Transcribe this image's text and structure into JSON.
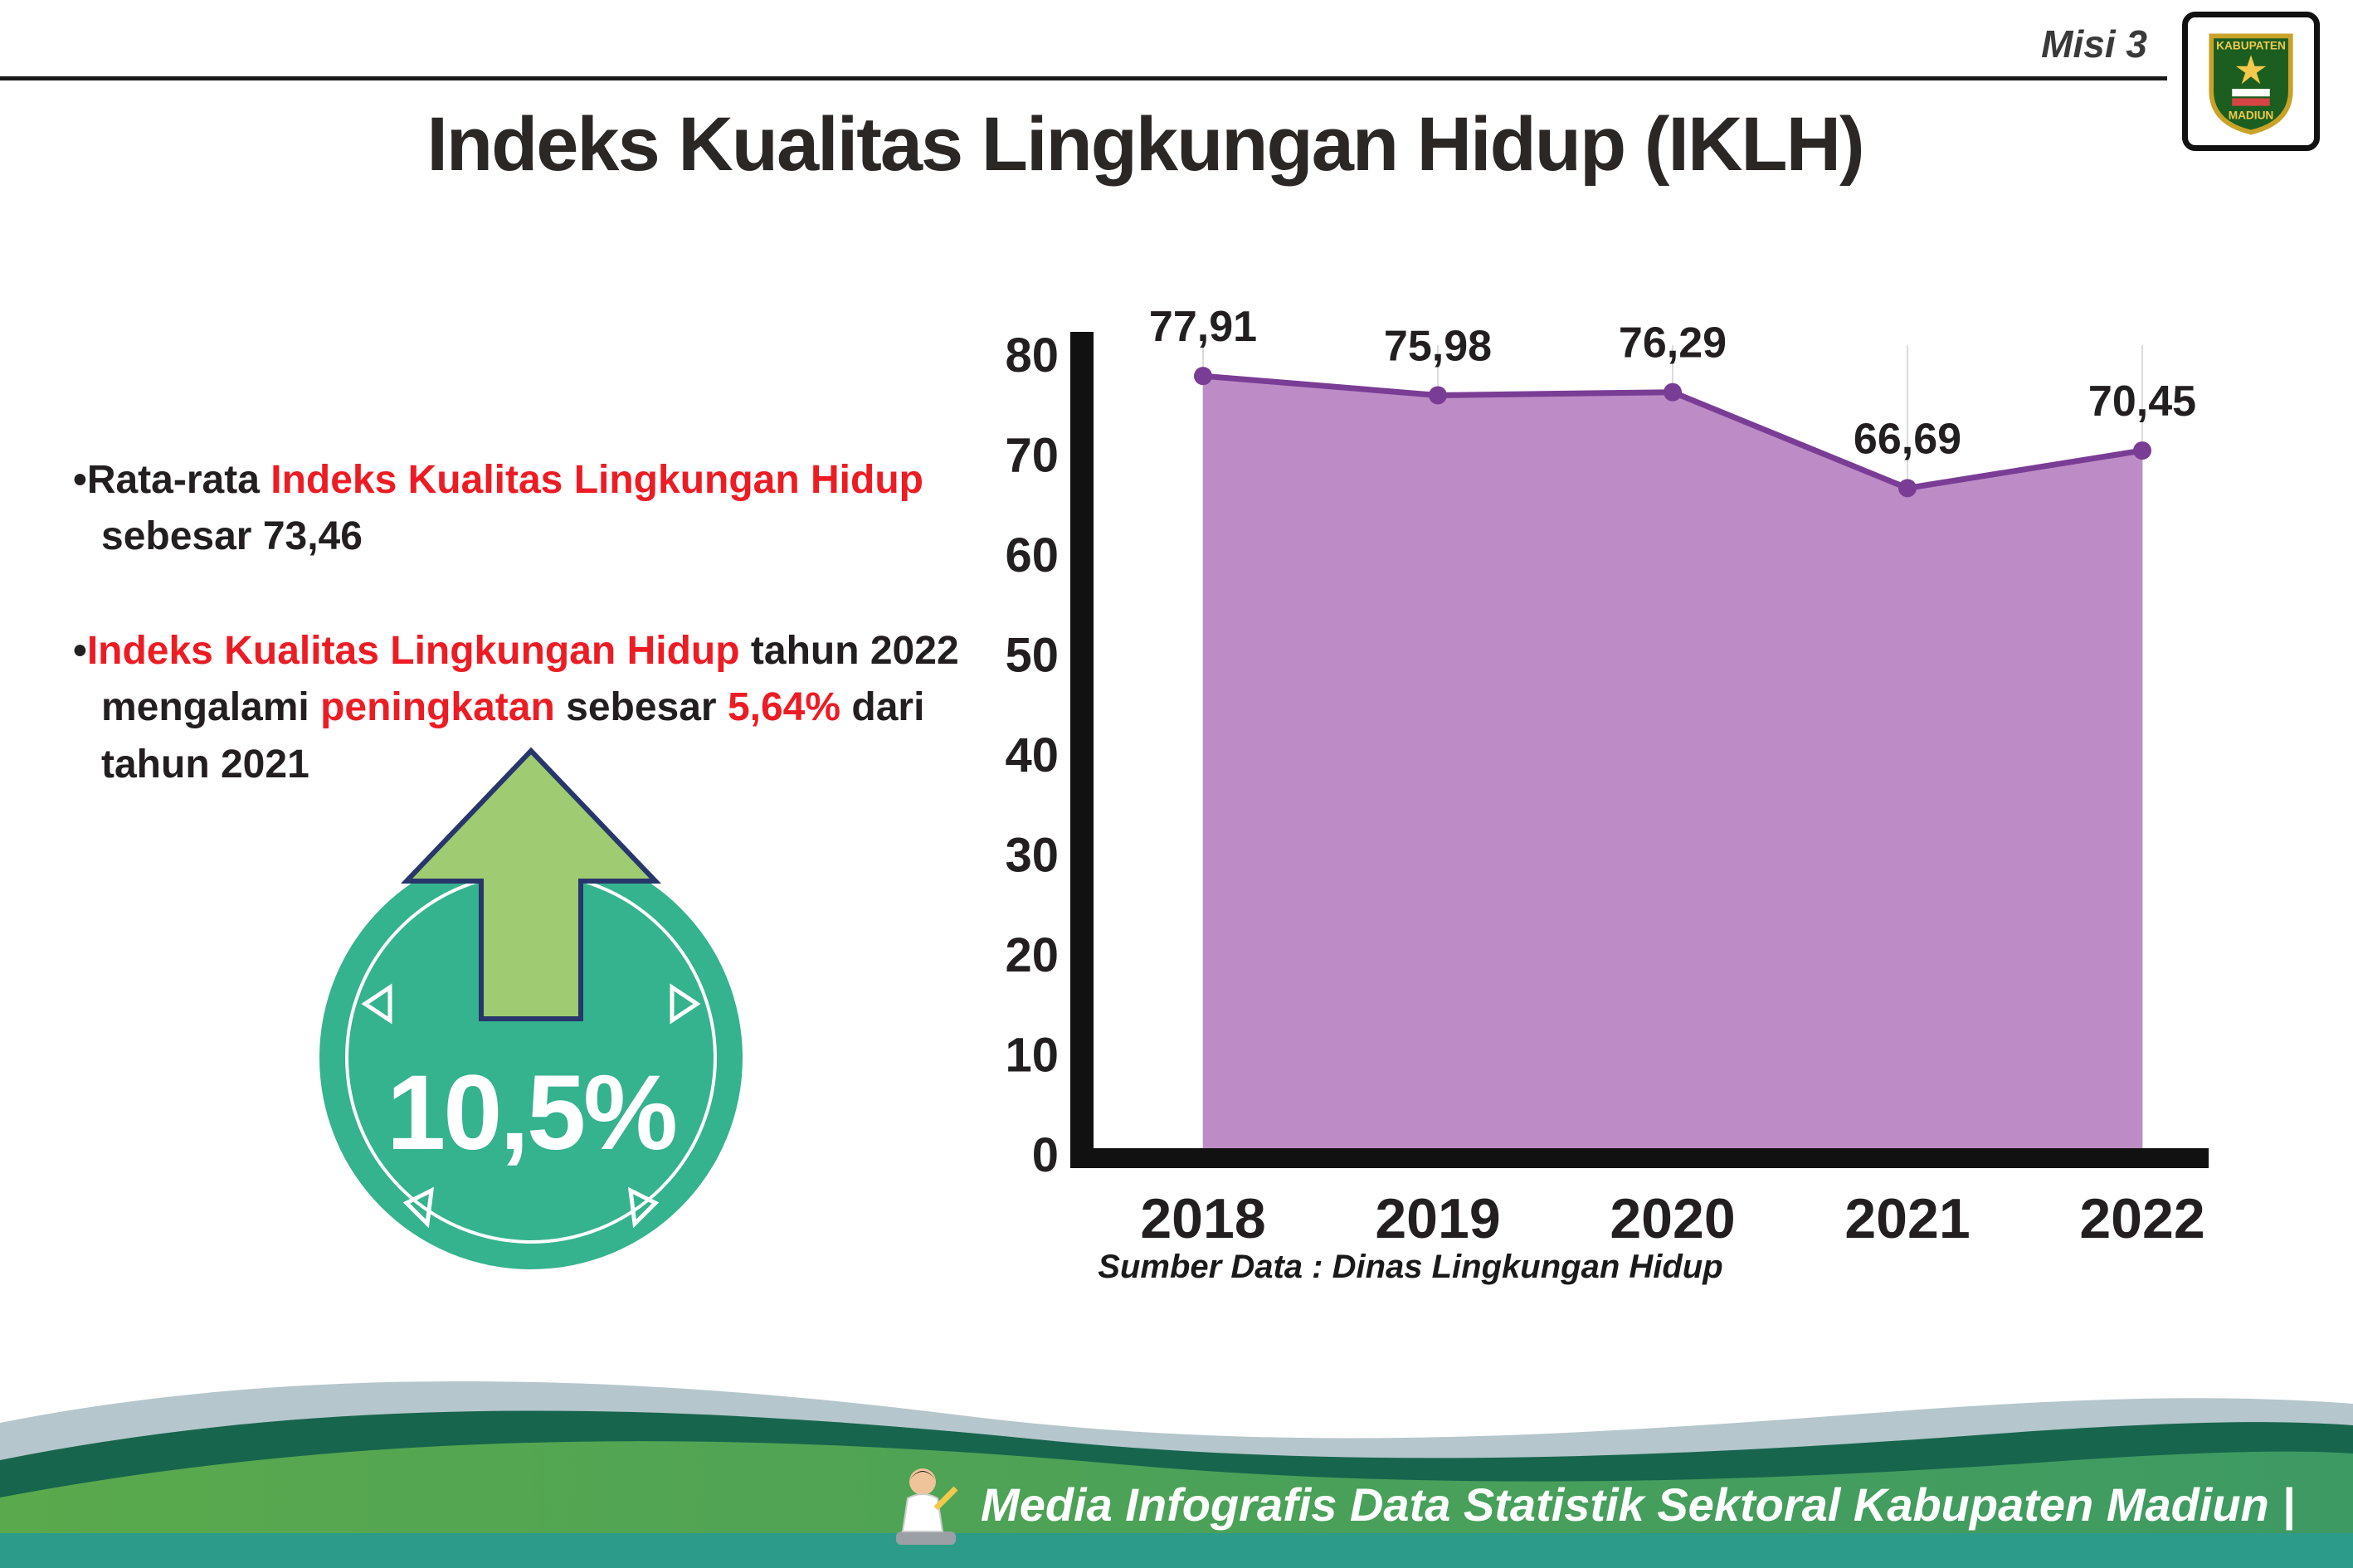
{
  "page": {
    "misi_label": "Misi 3",
    "title": "Indeks Kualitas Lingkungan Hidup (IKLH)",
    "source": "Sumber Data : Dinas Lingkungan Hidup",
    "footer_text": "Media Infografis Data Statistik Sektoral Kabupaten Madiun |"
  },
  "logo": {
    "top_text": "KABUPATEN",
    "bottom_text": "MADIUN"
  },
  "bullets": [
    {
      "marker": "•",
      "segments": [
        {
          "text": "Rata-rata ",
          "color": "dark"
        },
        {
          "text": "Indeks Kualitas Lingkungan Hidup",
          "color": "red"
        },
        {
          "text": " sebesar 73,46",
          "color": "dark"
        }
      ]
    },
    {
      "marker": "•",
      "segments": [
        {
          "text": "Indeks Kualitas Lingkungan Hidup",
          "color": "red"
        },
        {
          "text": " tahun 2022 mengalami ",
          "color": "dark"
        },
        {
          "text": "peningkatan",
          "color": "red"
        },
        {
          "text": " sebesar ",
          "color": "dark"
        },
        {
          "text": "5,64%",
          "color": "red"
        },
        {
          "text": " dari tahun 2021",
          "color": "dark"
        }
      ]
    }
  ],
  "badge": {
    "value": "10,5%"
  },
  "chart_data": {
    "type": "area",
    "categories": [
      "2018",
      "2019",
      "2020",
      "2021",
      "2022"
    ],
    "values": [
      77.91,
      75.98,
      76.29,
      66.69,
      70.45
    ],
    "labels": [
      "77,91",
      "75,98",
      "76,29",
      "66,69",
      "70,45"
    ],
    "title": "",
    "xlabel": "",
    "ylabel": "",
    "ylim": [
      0,
      80
    ],
    "ytick_interval": 10,
    "yticks": [
      0,
      10,
      20,
      30,
      40,
      50,
      60,
      70,
      80
    ],
    "grid": "vertical",
    "legend": "none",
    "fill_color": "#bd8cc6",
    "line_color": "#7a3d95"
  },
  "colors": {
    "accent_red": "#ed1c24",
    "text_dark": "#231f20",
    "badge_circle": "#35b28e",
    "badge_arrow": "#9fcb72",
    "footer_green": "#57a44a",
    "footer_teal": "#2d9b8a",
    "footer_dark_wave": "#17654d",
    "footer_gray_wave": "#b5c6cc"
  }
}
